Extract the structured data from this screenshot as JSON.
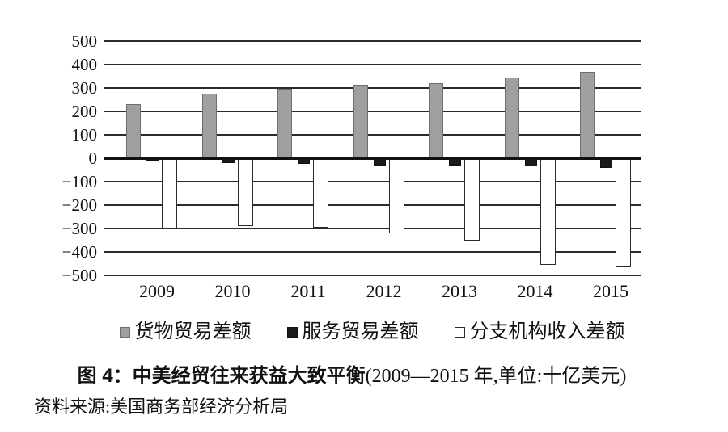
{
  "figure": {
    "title_main": "图 4：中美经贸往来获益大致平衡",
    "title_suffix": "(2009—2015 年,单位:十亿美元)",
    "source": "资料来源:美国商务部经济分析局"
  },
  "chart_data": {
    "type": "bar",
    "title": "图 4：中美经贸往来获益大致平衡(2009—2015 年,单位:十亿美元)",
    "xlabel": "",
    "ylabel": "",
    "categories": [
      "2009",
      "2010",
      "2011",
      "2012",
      "2013",
      "2014",
      "2015"
    ],
    "series": [
      {
        "name": "货物贸易差额",
        "color": "#a0a0a0",
        "values": [
          230,
          275,
          295,
          315,
          320,
          345,
          370
        ]
      },
      {
        "name": "服务贸易差额",
        "color": "#1a1a1a",
        "values": [
          -10,
          -20,
          -25,
          -30,
          -30,
          -35,
          -40
        ]
      },
      {
        "name": "分支机构收入差额",
        "color": "#ffffff",
        "values": [
          -300,
          -290,
          -295,
          -320,
          -350,
          -455,
          -465
        ]
      }
    ],
    "ylim": [
      -500,
      500
    ],
    "ytick_values": [
      500,
      400,
      300,
      200,
      100,
      0,
      -100,
      -200,
      -300,
      -400,
      -500
    ],
    "ytick_labels": [
      "500",
      "400",
      "300",
      "200",
      "100",
      "0",
      "−100",
      "−200",
      "−300",
      "−400",
      "−500"
    ],
    "grid": true,
    "legend_position": "bottom"
  }
}
